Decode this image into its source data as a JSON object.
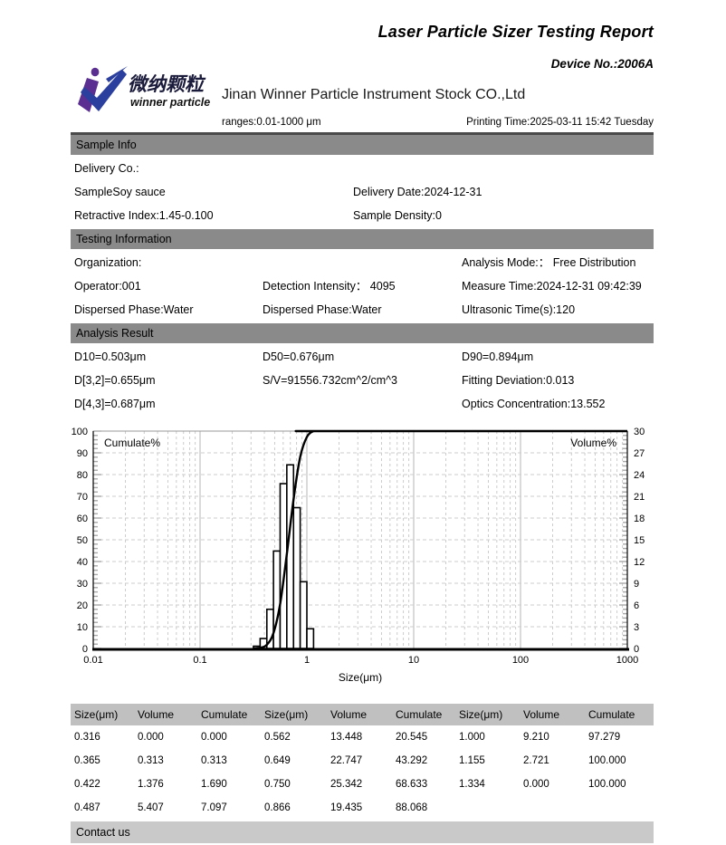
{
  "header": {
    "title": "Laser Particle Sizer Testing Report",
    "device_no": "Device No.:2006A",
    "company": "Jinan Winner Particle Instrument Stock CO.,Ltd",
    "ranges": "ranges:0.01-1000 μm",
    "printing_time": "Printing Time:2025-03-11 15:42 Tuesday",
    "logo": {
      "brand_cn": "微纳颗粒",
      "brand_en": "winner particle",
      "purple": "#5B2E91",
      "blue": "#2B3F9E",
      "text_dark": "#1b1b3c"
    }
  },
  "sections": [
    {
      "title": "Sample Info",
      "rows": [
        [
          "Delivery Co.:",
          "",
          ""
        ],
        [
          "SampleSoy sauce",
          "Delivery Date:2024-12-31",
          ""
        ],
        [
          "Retractive Index:1.45-0.100",
          "Sample Density:0",
          ""
        ]
      ]
    },
    {
      "title": "Testing Information",
      "rows": [
        [
          "Organization:",
          "",
          "Analysis Mode:： Free Distribution"
        ],
        [
          "Operator:001",
          "Detection Intensity： 4095",
          "Measure Time:2024-12-31 09:42:39"
        ],
        [
          "Dispersed Phase:Water",
          "Dispersed Phase:Water",
          "Ultrasonic Time(s):120"
        ]
      ]
    },
    {
      "title": "Analysis Result",
      "rows": [
        [
          "D10=0.503μm",
          "D50=0.676μm",
          "D90=0.894μm"
        ],
        [
          "D[3,2]=0.655μm",
          "S/V=91556.732cm^2/cm^3",
          "Fitting Deviation:0.013"
        ],
        [
          "D[4,3]=0.687μm",
          "",
          "Optics Concentration:13.552"
        ]
      ]
    }
  ],
  "chart_data": {
    "type": "bar",
    "subtype": "histogram-with-cumulative-line",
    "x_axis": {
      "label": "Size(μm)",
      "scale": "log",
      "min": 0.01,
      "max": 1000,
      "ticks": [
        "0.01",
        "0.1",
        "1",
        "10",
        "100",
        "1000"
      ]
    },
    "y_left": {
      "label": "Cumulate%",
      "min": 0,
      "max": 100,
      "tick_step": 10
    },
    "y_right": {
      "label": "Volume%",
      "min": 0,
      "max": 30,
      "tick_step": 3
    },
    "grid": "dashed-gray",
    "bin_edges": [
      0.316,
      0.365,
      0.422,
      0.487,
      0.562,
      0.649,
      0.75,
      0.866,
      1.0,
      1.155,
      1.334
    ],
    "volume_series": [
      0.313,
      1.376,
      5.407,
      13.448,
      22.747,
      25.342,
      19.435,
      9.21,
      2.721,
      0.0
    ],
    "cumulate_points": {
      "x": [
        0.316,
        0.365,
        0.422,
        0.487,
        0.562,
        0.649,
        0.75,
        0.866,
        1.0,
        1.155,
        1.334,
        1000
      ],
      "y": [
        0.0,
        0.313,
        1.69,
        7.097,
        20.545,
        43.292,
        68.633,
        88.068,
        97.279,
        100.0,
        100.0,
        100.0
      ]
    }
  },
  "table": {
    "headers": [
      "Size(μm)",
      "Volume",
      "Cumulate",
      "Size(μm)",
      "Volume",
      "Cumulate",
      "Size(μm)",
      "Volume",
      "Cumulate"
    ],
    "rows": [
      [
        "0.316",
        "0.000",
        "0.000",
        "0.562",
        "13.448",
        "20.545",
        "1.000",
        "9.210",
        "97.279"
      ],
      [
        "0.365",
        "0.313",
        "0.313",
        "0.649",
        "22.747",
        "43.292",
        "1.155",
        "2.721",
        "100.000"
      ],
      [
        "0.422",
        "1.376",
        "1.690",
        "0.750",
        "25.342",
        "68.633",
        "1.334",
        "0.000",
        "100.000"
      ],
      [
        "0.487",
        "5.407",
        "7.097",
        "0.866",
        "19.435",
        "88.068",
        "",
        "",
        ""
      ]
    ]
  },
  "footer": {
    "contact": "Contact us"
  }
}
